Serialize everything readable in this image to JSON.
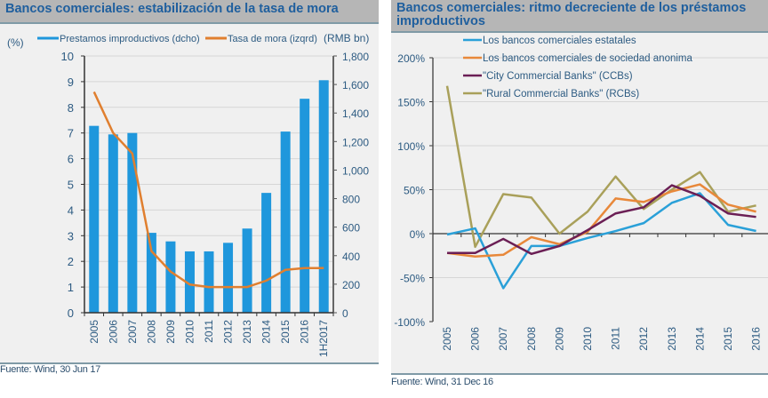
{
  "chart_data": [
    {
      "type": "bar",
      "title": "Bancos comerciales: estabilización de la tasa de mora",
      "ylabel_left": "(%)",
      "ylabel_right": "(RMB bn)",
      "categories": [
        "2005",
        "2006",
        "2007",
        "2008",
        "2009",
        "2010",
        "2011",
        "2012",
        "2013",
        "2014",
        "2015",
        "2016",
        "1H2017"
      ],
      "series": [
        {
          "name": "Prestamos improductivos (dcho)",
          "type": "bar",
          "axis": "right",
          "color": "#1f97dc",
          "values": [
            1310,
            1250,
            1260,
            560,
            500,
            430,
            430,
            490,
            590,
            840,
            1270,
            1500,
            1630
          ]
        },
        {
          "name": "Tasa de mora (izqrd)",
          "type": "line",
          "axis": "left",
          "color": "#e07f2f",
          "values": [
            8.6,
            7.0,
            6.2,
            2.4,
            1.6,
            1.1,
            1.0,
            1.0,
            1.0,
            1.25,
            1.67,
            1.74,
            1.74
          ]
        }
      ],
      "ylim_left": [
        0,
        10
      ],
      "yticks_left": [
        "0",
        "1",
        "2",
        "3",
        "4",
        "5",
        "6",
        "7",
        "8",
        "9",
        "10"
      ],
      "ylim_right": [
        0,
        1800
      ],
      "yticks_right": [
        "0",
        "200",
        "400",
        "600",
        "800",
        "1,000",
        "1,200",
        "1,400",
        "1,600",
        "1,800"
      ],
      "grid": true,
      "legend_position": "top",
      "source": "Fuente: Wind, 30 Jun 17"
    },
    {
      "type": "line",
      "title": "Bancos comerciales: ritmo decreciente de los préstamos improductivos",
      "categories": [
        "2005",
        "2006",
        "2007",
        "2008",
        "2009",
        "2010",
        "2011",
        "2012",
        "2013",
        "2014",
        "2015",
        "2016"
      ],
      "series": [
        {
          "name": "Los bancos comerciales estatales",
          "color": "#2aa0d8",
          "values": [
            -1,
            6,
            -62,
            -14,
            -14,
            -5,
            3,
            12,
            35,
            46,
            10,
            3
          ]
        },
        {
          "name": "Los bancos comerciales de sociedad anonima",
          "color": "#e8883a",
          "values": [
            -22,
            -26,
            -24,
            -4,
            -12,
            2,
            40,
            36,
            48,
            56,
            33,
            25
          ]
        },
        {
          "name": "\"City Commercial Banks\" (CCBs)",
          "color": "#6b1f55",
          "values": [
            -22,
            -22,
            -6,
            -23,
            -14,
            4,
            23,
            30,
            55,
            43,
            23,
            19
          ]
        },
        {
          "name": "\"Rural Commercial Banks\" (RCBs)",
          "color": "#a9a05a",
          "values": [
            168,
            -15,
            45,
            41,
            0,
            25,
            65,
            28,
            50,
            70,
            25,
            32
          ]
        }
      ],
      "ylim": [
        -100,
        200
      ],
      "yticks": [
        "-100%",
        "-50%",
        "0%",
        "50%",
        "100%",
        "150%",
        "200%"
      ],
      "grid": true,
      "legend_position": "top-left",
      "source": "Fuente: Wind, 31 Dec 16"
    }
  ]
}
